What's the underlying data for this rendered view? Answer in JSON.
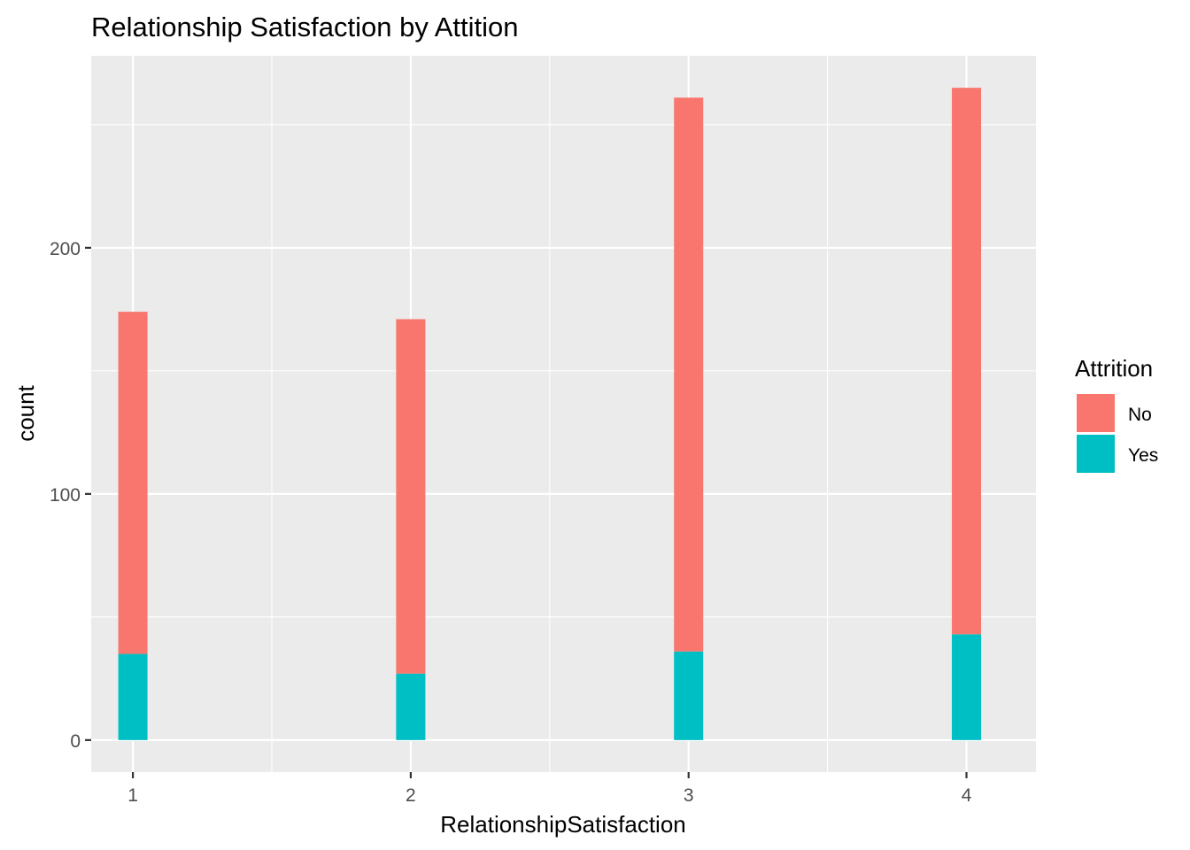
{
  "chart_data": {
    "type": "bar",
    "stacked": true,
    "title": "Relationship Satisfaction by Attition",
    "xlabel": "RelationshipSatisfaction",
    "ylabel": "count",
    "categories": [
      1,
      2,
      3,
      4
    ],
    "x_ticks": [
      1,
      2,
      3,
      4
    ],
    "xlim": [
      0.85,
      4.25
    ],
    "y_ticks": [
      0,
      100,
      200
    ],
    "ylim": [
      -13,
      278
    ],
    "grid": true,
    "legend": {
      "title": "Attrition",
      "placement": "right"
    },
    "series": [
      {
        "name": "No",
        "color": "#F8766D",
        "values": [
          139,
          144,
          225,
          222
        ]
      },
      {
        "name": "Yes",
        "color": "#00BFC4",
        "values": [
          35,
          27,
          36,
          43
        ]
      }
    ]
  },
  "style": {
    "panel_background": "#EBEBEB",
    "grid_color": "#FFFFFF",
    "tick_color": "#333333"
  }
}
